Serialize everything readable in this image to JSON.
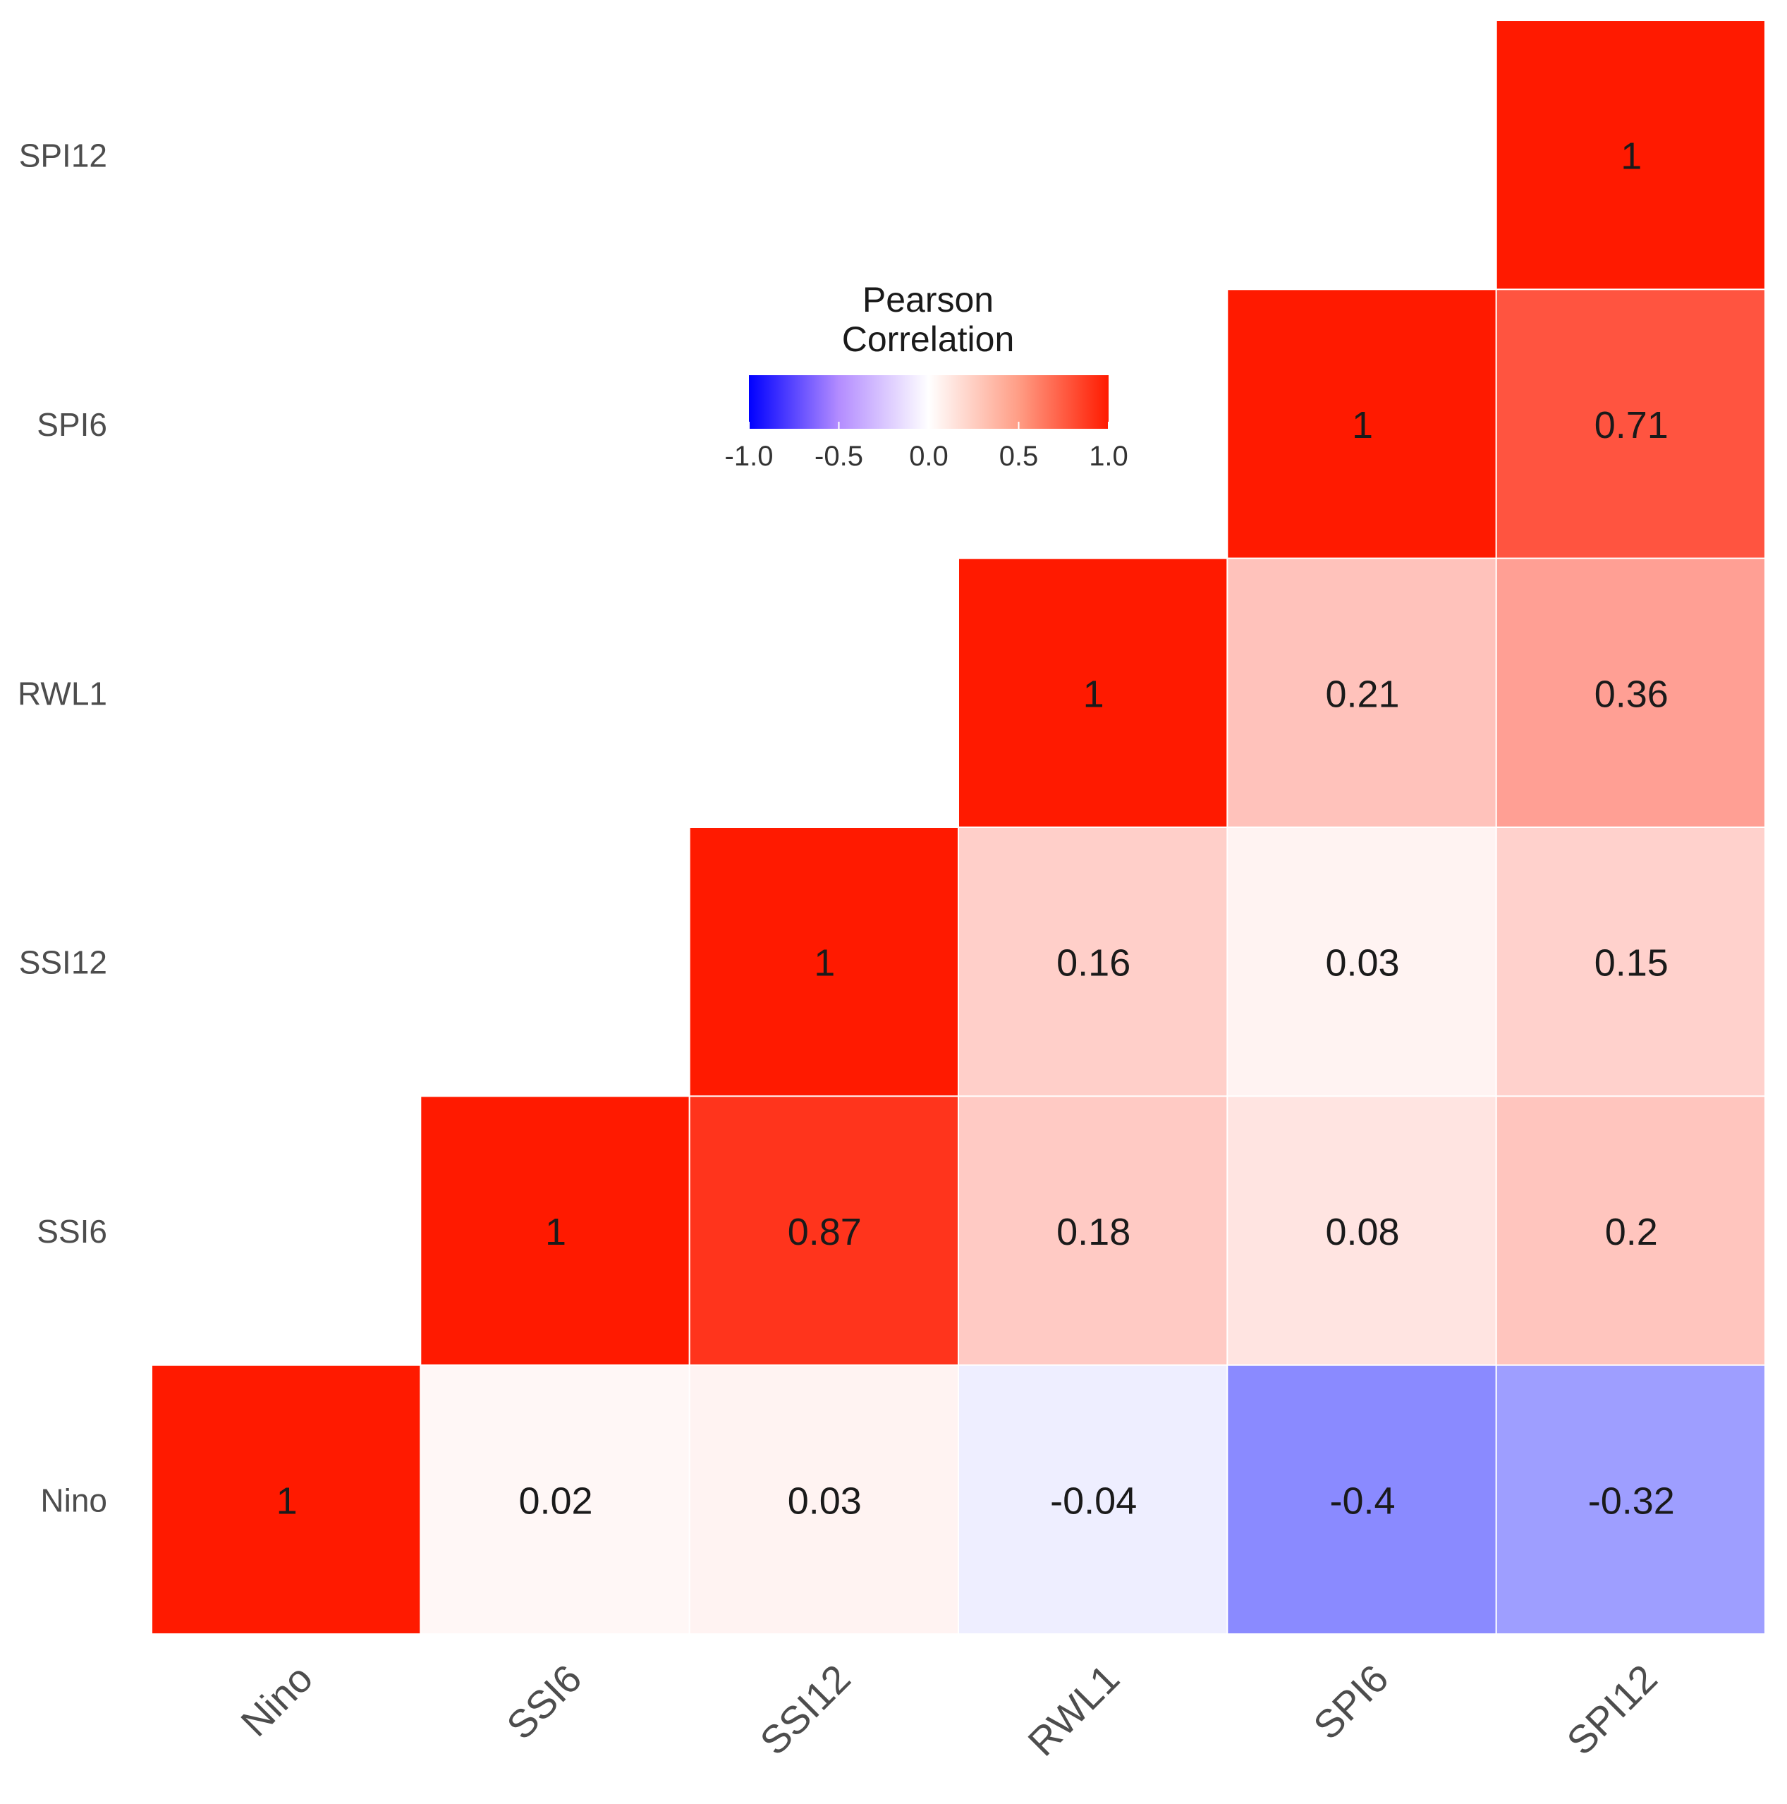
{
  "chart_data": {
    "type": "heatmap",
    "variables": [
      "Nino",
      "SSI6",
      "SSI12",
      "RWL1",
      "SPI6",
      "SPI12"
    ],
    "cells": [
      {
        "row": "Nino",
        "col": "Nino",
        "value": 1,
        "label": "1"
      },
      {
        "row": "Nino",
        "col": "SSI6",
        "value": 0.02,
        "label": "0.02"
      },
      {
        "row": "Nino",
        "col": "SSI12",
        "value": 0.03,
        "label": "0.03"
      },
      {
        "row": "Nino",
        "col": "RWL1",
        "value": -0.04,
        "label": "-0.04"
      },
      {
        "row": "Nino",
        "col": "SPI6",
        "value": -0.4,
        "label": "-0.4"
      },
      {
        "row": "Nino",
        "col": "SPI12",
        "value": -0.32,
        "label": "-0.32"
      },
      {
        "row": "SSI6",
        "col": "SSI6",
        "value": 1,
        "label": "1"
      },
      {
        "row": "SSI6",
        "col": "SSI12",
        "value": 0.87,
        "label": "0.87"
      },
      {
        "row": "SSI6",
        "col": "RWL1",
        "value": 0.18,
        "label": "0.18"
      },
      {
        "row": "SSI6",
        "col": "SPI6",
        "value": 0.08,
        "label": "0.08"
      },
      {
        "row": "SSI6",
        "col": "SPI12",
        "value": 0.2,
        "label": "0.2"
      },
      {
        "row": "SSI12",
        "col": "SSI12",
        "value": 1,
        "label": "1"
      },
      {
        "row": "SSI12",
        "col": "RWL1",
        "value": 0.16,
        "label": "0.16"
      },
      {
        "row": "SSI12",
        "col": "SPI6",
        "value": 0.03,
        "label": "0.03"
      },
      {
        "row": "SSI12",
        "col": "SPI12",
        "value": 0.15,
        "label": "0.15"
      },
      {
        "row": "RWL1",
        "col": "RWL1",
        "value": 1,
        "label": "1"
      },
      {
        "row": "RWL1",
        "col": "SPI6",
        "value": 0.21,
        "label": "0.21"
      },
      {
        "row": "RWL1",
        "col": "SPI12",
        "value": 0.36,
        "label": "0.36"
      },
      {
        "row": "SPI6",
        "col": "SPI6",
        "value": 1,
        "label": "1"
      },
      {
        "row": "SPI6",
        "col": "SPI12",
        "value": 0.71,
        "label": "0.71"
      },
      {
        "row": "SPI12",
        "col": "SPI12",
        "value": 1,
        "label": "1"
      }
    ],
    "legend": {
      "title_line1": "Pearson",
      "title_line2": "Correlation",
      "ticks": [
        "-1.0",
        "-0.5",
        "0.0",
        "0.5",
        "1.0"
      ],
      "range": [
        -1,
        1
      ],
      "placement": "top-center"
    },
    "colors": {
      "low": "#0000ff",
      "mid": "#ffffff",
      "high": "#ff1a00"
    }
  }
}
